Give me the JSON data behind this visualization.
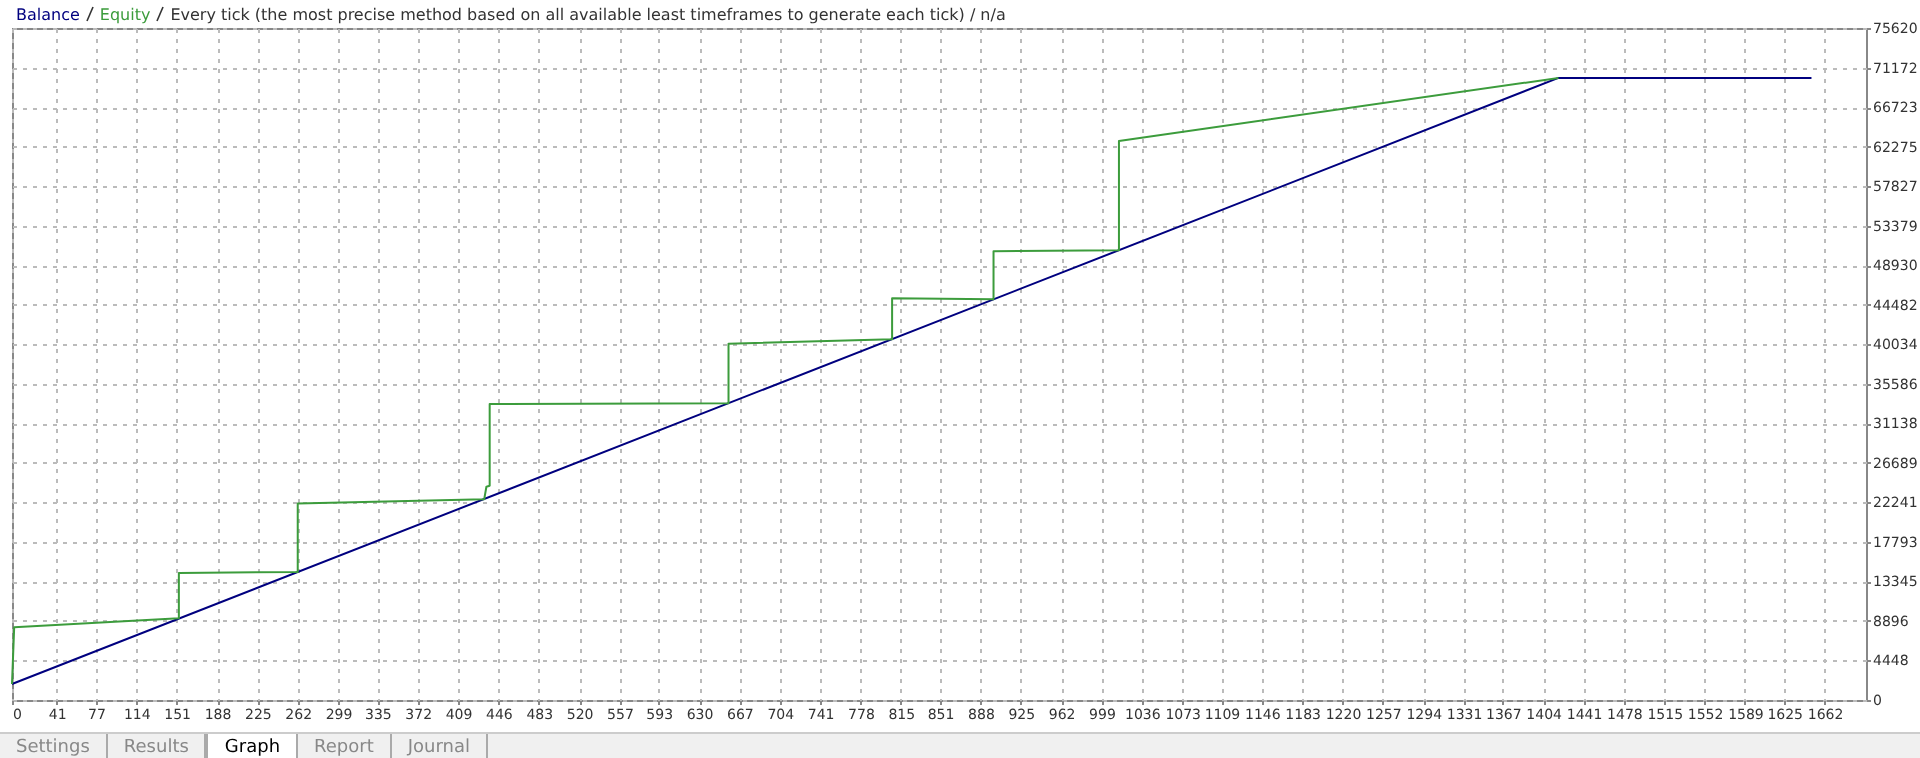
{
  "chart_data": {
    "type": "line",
    "title": "Every tick (the most precise method based on all available least timeframes to generate each tick) / n/a",
    "annotations": [
      "Settings",
      "Results",
      "Graph",
      "Report",
      "Journal"
    ],
    "series": [
      {
        "name": "Balance",
        "color": "#00007f",
        "x": [
          0,
          1418,
          1650
        ],
        "values": [
          1800,
          70000,
          70000
        ]
      },
      {
        "name": "Equity",
        "color": "#3c9c3c",
        "x": [
          0,
          2,
          153,
          153,
          262,
          262,
          433,
          435,
          438,
          438,
          657,
          657,
          807,
          807,
          900,
          900,
          1015,
          1015,
          1418
        ],
        "values": [
          1800,
          8200,
          9200,
          14300,
          14400,
          22100,
          22600,
          24000,
          24100,
          33300,
          33400,
          40100,
          40600,
          45200,
          45100,
          50500,
          50600,
          62900,
          70000
        ]
      }
    ],
    "xlim": [
      0,
      1700
    ],
    "xticks": [
      0,
      41,
      77,
      114,
      151,
      188,
      225,
      262,
      299,
      335,
      372,
      409,
      446,
      483,
      520,
      557,
      593,
      630,
      667,
      704,
      741,
      778,
      815,
      851,
      888,
      925,
      962,
      999,
      1036,
      1073,
      1109,
      1146,
      1183,
      1220,
      1257,
      1294,
      1331,
      1367,
      1404,
      1441,
      1478,
      1515,
      1552,
      1589,
      1625,
      1662
    ],
    "ylim": [
      0,
      75620
    ],
    "yticks": [
      0,
      4448,
      8896,
      13345,
      17793,
      22241,
      26689,
      31138,
      35586,
      40034,
      44482,
      48930,
      53379,
      57827,
      62275,
      66723,
      71172,
      75620
    ],
    "grid": true,
    "legend": "top left",
    "marker": "none",
    "line_style": "solid"
  }
}
